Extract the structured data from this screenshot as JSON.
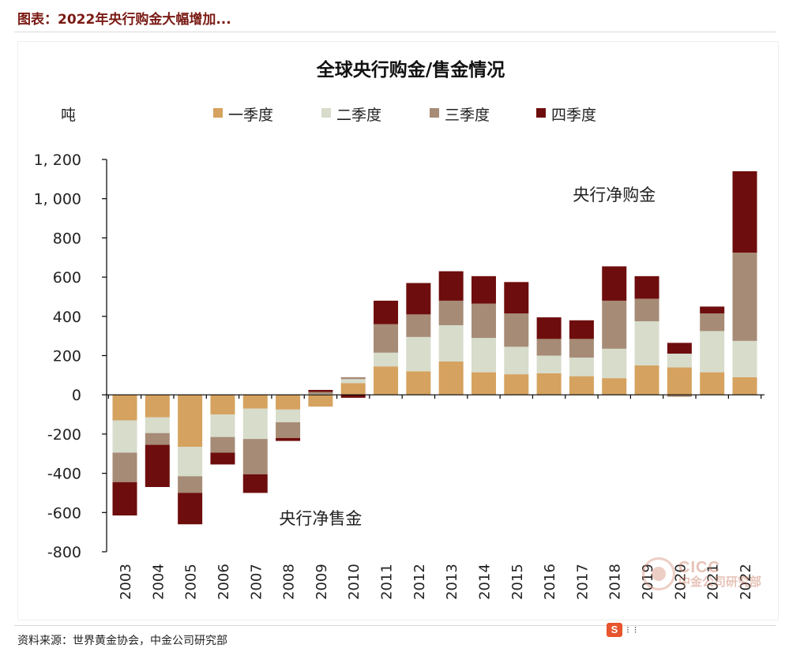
{
  "page": {
    "heading": "图表：2022年央行购金大幅增加...",
    "source": "资料来源：世界黄金协会，中金公司研究部",
    "watermark": {
      "brand": "CICC",
      "name": "中金公司研究部"
    },
    "badge": {
      "icon": "sogou-s-icon",
      "letter": "S",
      "dots": "⁝ ⁝"
    }
  },
  "chart_data": {
    "type": "bar",
    "stacked": true,
    "title": "全球央行购金/售金情况",
    "ylabel": "吨",
    "xlabel": "",
    "ylim": [
      -800,
      1200
    ],
    "yticks": [
      -800,
      -600,
      -400,
      -200,
      0,
      200,
      400,
      600,
      800,
      1000,
      1200
    ],
    "ytick_labels": [
      "-800",
      "-600",
      "-400",
      "-200",
      "0",
      "200",
      "400",
      "600",
      "800",
      "1, 000",
      "1, 200"
    ],
    "legend_position": "top",
    "grid": false,
    "categories": [
      "2003",
      "2004",
      "2005",
      "2006",
      "2007",
      "2008",
      "2009",
      "2010",
      "2011",
      "2012",
      "2013",
      "2014",
      "2015",
      "2016",
      "2017",
      "2018",
      "2019",
      "2020",
      "2021",
      "2022"
    ],
    "series": [
      {
        "name": "一季度",
        "color": "#d5a25f",
        "values": [
          -130,
          -115,
          -265,
          -100,
          -70,
          -75,
          -60,
          60,
          145,
          120,
          170,
          115,
          105,
          110,
          95,
          85,
          150,
          140,
          115,
          90
        ]
      },
      {
        "name": "二季度",
        "color": "#d7dccb",
        "values": [
          -165,
          -80,
          -150,
          -115,
          -155,
          -65,
          5,
          20,
          70,
          175,
          185,
          175,
          140,
          90,
          95,
          150,
          225,
          70,
          210,
          185
        ]
      },
      {
        "name": "三季度",
        "color": "#a68b76",
        "values": [
          -150,
          -60,
          -85,
          -80,
          -180,
          -80,
          10,
          10,
          145,
          115,
          125,
          175,
          170,
          85,
          95,
          245,
          115,
          -10,
          90,
          450
        ]
      },
      {
        "name": "四季度",
        "color": "#6e0d0d",
        "values": [
          -170,
          -215,
          -160,
          -60,
          -95,
          -15,
          10,
          -15,
          120,
          160,
          150,
          140,
          160,
          110,
          95,
          175,
          115,
          55,
          35,
          415
        ]
      }
    ],
    "annotations": [
      {
        "text": "央行净购金",
        "x": "2018",
        "y": 990
      },
      {
        "text": "央行净售金",
        "x": "2009",
        "y": -660
      }
    ]
  }
}
